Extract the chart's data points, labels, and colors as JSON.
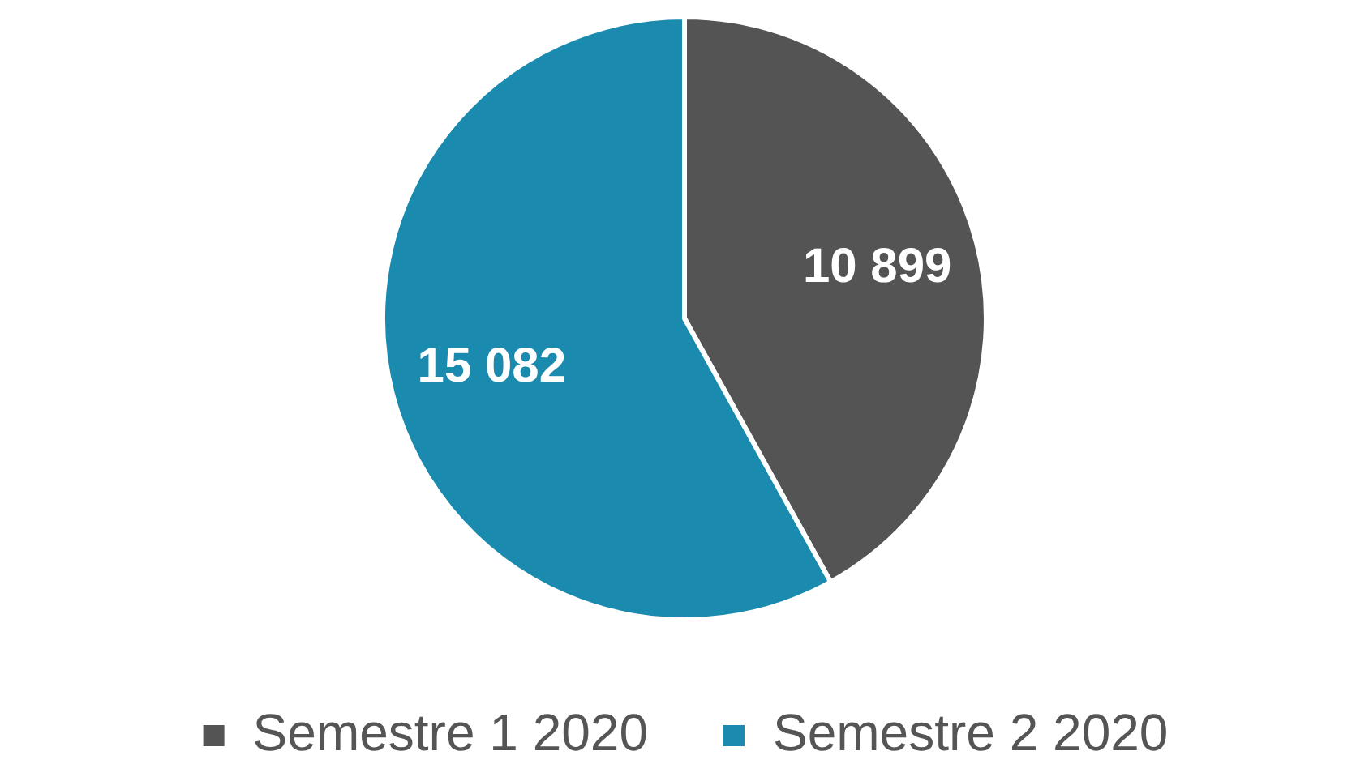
{
  "chart_data": {
    "type": "pie",
    "categories": [
      "Semestre 1 2020",
      "Semestre 2 2020"
    ],
    "values": [
      10899,
      15082
    ],
    "colors": [
      "#545454",
      "#1a8aaf"
    ],
    "value_labels": [
      "10 899",
      "15 082"
    ],
    "legend": "bottom"
  }
}
